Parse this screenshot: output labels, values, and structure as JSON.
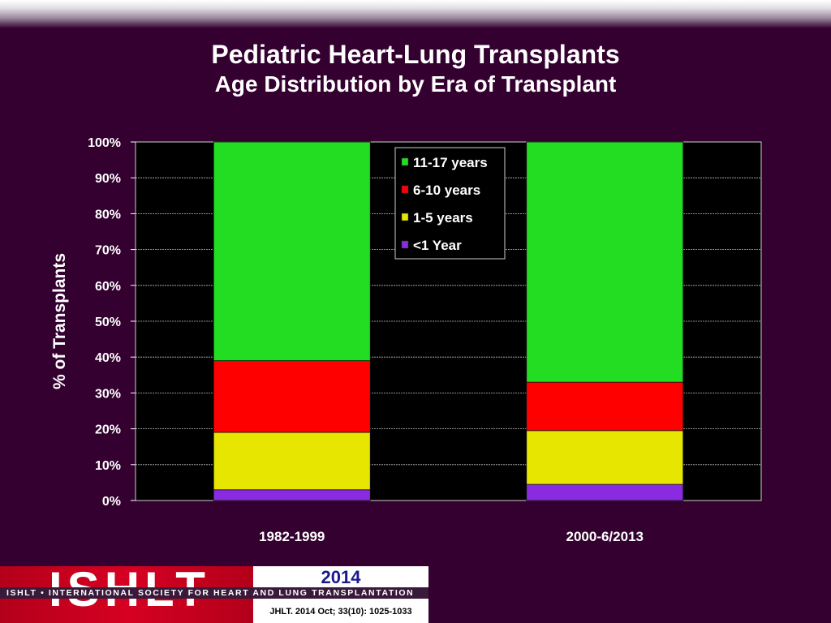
{
  "title": "Pediatric Heart-Lung Transplants",
  "subtitle": "Age Distribution by Era of Transplant",
  "chart_data": {
    "type": "bar",
    "stacked": true,
    "categories": [
      "1982-1999",
      "2000-6/2013"
    ],
    "series": [
      {
        "name": "<1 Year",
        "color": "#8a2be2",
        "values": [
          3,
          4.5
        ]
      },
      {
        "name": "1-5 years",
        "color": "#e6e600",
        "values": [
          16,
          15
        ]
      },
      {
        "name": "6-10 years",
        "color": "#ff0000",
        "values": [
          20,
          13.5
        ]
      },
      {
        "name": "11-17 years",
        "color": "#22dd22",
        "values": [
          61,
          67
        ]
      }
    ],
    "ylabel": "% of Transplants",
    "xlabel": "",
    "ylim": [
      0,
      100
    ],
    "yticks": [
      "0%",
      "10%",
      "20%",
      "30%",
      "40%",
      "50%",
      "60%",
      "70%",
      "80%",
      "90%",
      "100%"
    ],
    "legend_order": [
      "11-17 years",
      "6-10 years",
      "1-5 years",
      "<1 Year"
    ],
    "legend_position": "top-center",
    "grid": true,
    "plot_background": "#000000"
  },
  "footer": {
    "logo_text": "ISHLT",
    "org_name": "ISHLT • INTERNATIONAL SOCIETY FOR HEART AND LUNG TRANSPLANTATION",
    "year": "2014",
    "citation": "JHLT. 2014 Oct; 33(10): 1025-1033"
  }
}
